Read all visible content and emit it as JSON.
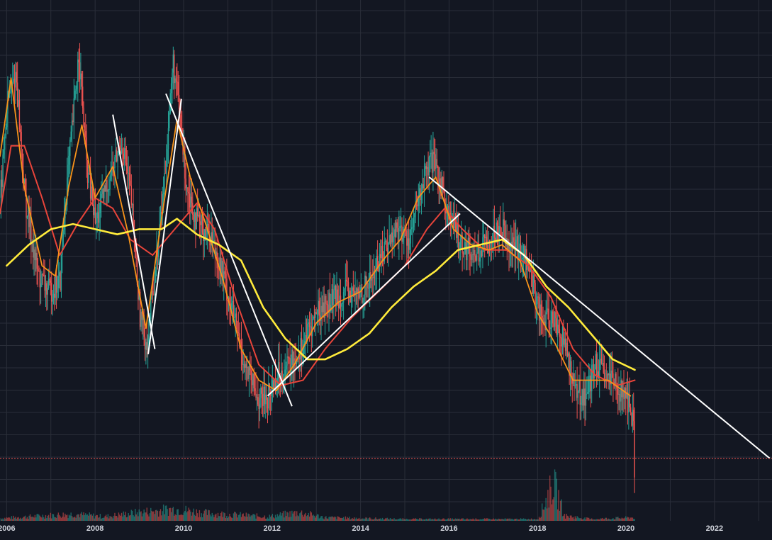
{
  "chart_data": {
    "type": "candlestick",
    "xlim": [
      2005.85,
      2023.3
    ],
    "ylim": [
      0,
      1
    ],
    "y_axis_labels": "none",
    "grid": true,
    "colors": {
      "background": "#131722",
      "grid": "#2a2e39",
      "up": "#26a69a",
      "down": "#ef5350",
      "sma_fast": "#f7931a",
      "sma_mid": "#e8443a",
      "sma_slow": "#ffeb3b",
      "trendlines": "#ffffff",
      "price_line": "#ef5350",
      "volume_up": "#26a69a",
      "volume_down": "#ef5350"
    },
    "x_ticks": [
      "2006",
      "2008",
      "2010",
      "2012",
      "2014",
      "2016",
      "2018",
      "2020",
      "2022"
    ],
    "x_tick_values": [
      2006,
      2008,
      2010,
      2012,
      2014,
      2016,
      2018,
      2020,
      2022
    ],
    "price_path": [
      [
        2005.85,
        0.62
      ],
      [
        2006.0,
        0.8
      ],
      [
        2006.2,
        0.86
      ],
      [
        2006.4,
        0.62
      ],
      [
        2006.7,
        0.47
      ],
      [
        2006.95,
        0.44
      ],
      [
        2007.2,
        0.46
      ],
      [
        2007.3,
        0.6
      ],
      [
        2007.5,
        0.78
      ],
      [
        2007.62,
        0.9
      ],
      [
        2007.8,
        0.68
      ],
      [
        2008.0,
        0.57
      ],
      [
        2008.2,
        0.63
      ],
      [
        2008.4,
        0.68
      ],
      [
        2008.6,
        0.73
      ],
      [
        2008.8,
        0.62
      ],
      [
        2009.0,
        0.4
      ],
      [
        2009.15,
        0.34
      ],
      [
        2009.35,
        0.48
      ],
      [
        2009.55,
        0.65
      ],
      [
        2009.75,
        0.88
      ],
      [
        2009.9,
        0.78
      ],
      [
        2010.05,
        0.65
      ],
      [
        2010.3,
        0.57
      ],
      [
        2010.6,
        0.55
      ],
      [
        2010.85,
        0.48
      ],
      [
        2011.1,
        0.4
      ],
      [
        2011.4,
        0.29
      ],
      [
        2011.7,
        0.23
      ],
      [
        2011.9,
        0.24
      ],
      [
        2012.1,
        0.28
      ],
      [
        2012.4,
        0.3
      ],
      [
        2012.7,
        0.34
      ],
      [
        2013.0,
        0.4
      ],
      [
        2013.3,
        0.42
      ],
      [
        2013.6,
        0.44
      ],
      [
        2013.9,
        0.43
      ],
      [
        2014.2,
        0.46
      ],
      [
        2014.5,
        0.52
      ],
      [
        2014.8,
        0.56
      ],
      [
        2015.1,
        0.54
      ],
      [
        2015.4,
        0.65
      ],
      [
        2015.6,
        0.69
      ],
      [
        2015.8,
        0.65
      ],
      [
        2016.0,
        0.58
      ],
      [
        2016.3,
        0.53
      ],
      [
        2016.6,
        0.51
      ],
      [
        2016.9,
        0.54
      ],
      [
        2017.15,
        0.57
      ],
      [
        2017.4,
        0.53
      ],
      [
        2017.7,
        0.51
      ],
      [
        2017.9,
        0.45
      ],
      [
        2018.1,
        0.38
      ],
      [
        2018.35,
        0.39
      ],
      [
        2018.6,
        0.34
      ],
      [
        2018.85,
        0.25
      ],
      [
        2019.1,
        0.24
      ],
      [
        2019.3,
        0.3
      ],
      [
        2019.55,
        0.27
      ],
      [
        2019.8,
        0.26
      ],
      [
        2020.0,
        0.23
      ],
      [
        2020.15,
        0.2
      ],
      [
        2020.2,
        0.05
      ]
    ],
    "volume_path": [
      [
        2005.85,
        0.03
      ],
      [
        2006.8,
        0.06
      ],
      [
        2007.5,
        0.08
      ],
      [
        2008.2,
        0.05
      ],
      [
        2009.0,
        0.1
      ],
      [
        2009.8,
        0.14
      ],
      [
        2010.5,
        0.09
      ],
      [
        2011.2,
        0.07
      ],
      [
        2011.9,
        0.05
      ],
      [
        2012.6,
        0.1
      ],
      [
        2013.2,
        0.04
      ],
      [
        2014.0,
        0.03
      ],
      [
        2015.0,
        0.02
      ],
      [
        2016.0,
        0.02
      ],
      [
        2017.0,
        0.02
      ],
      [
        2018.0,
        0.02
      ],
      [
        2018.35,
        0.45
      ],
      [
        2018.6,
        0.06
      ],
      [
        2019.2,
        0.02
      ],
      [
        2020.2,
        0.04
      ]
    ],
    "sma_fast": [
      [
        2005.85,
        0.7
      ],
      [
        2006.1,
        0.85
      ],
      [
        2006.4,
        0.64
      ],
      [
        2006.8,
        0.49
      ],
      [
        2007.1,
        0.47
      ],
      [
        2007.4,
        0.64
      ],
      [
        2007.7,
        0.76
      ],
      [
        2008.0,
        0.62
      ],
      [
        2008.4,
        0.68
      ],
      [
        2008.75,
        0.55
      ],
      [
        2009.15,
        0.37
      ],
      [
        2009.5,
        0.58
      ],
      [
        2009.85,
        0.77
      ],
      [
        2010.15,
        0.66
      ],
      [
        2010.5,
        0.57
      ],
      [
        2010.9,
        0.46
      ],
      [
        2011.3,
        0.33
      ],
      [
        2011.7,
        0.27
      ],
      [
        2012.1,
        0.25
      ],
      [
        2012.5,
        0.3
      ],
      [
        2013.0,
        0.38
      ],
      [
        2013.5,
        0.42
      ],
      [
        2014.0,
        0.44
      ],
      [
        2014.5,
        0.5
      ],
      [
        2014.9,
        0.54
      ],
      [
        2015.3,
        0.62
      ],
      [
        2015.7,
        0.66
      ],
      [
        2016.1,
        0.56
      ],
      [
        2016.5,
        0.53
      ],
      [
        2016.9,
        0.52
      ],
      [
        2017.2,
        0.53
      ],
      [
        2017.6,
        0.5
      ],
      [
        2018.0,
        0.4
      ],
      [
        2018.4,
        0.34
      ],
      [
        2018.8,
        0.27
      ],
      [
        2019.2,
        0.27
      ],
      [
        2019.6,
        0.27
      ],
      [
        2020.1,
        0.24
      ]
    ],
    "sma_mid": [
      [
        2005.85,
        0.59
      ],
      [
        2006.1,
        0.72
      ],
      [
        2006.4,
        0.72
      ],
      [
        2006.8,
        0.62
      ],
      [
        2007.2,
        0.51
      ],
      [
        2007.6,
        0.57
      ],
      [
        2008.0,
        0.62
      ],
      [
        2008.4,
        0.6
      ],
      [
        2008.8,
        0.54
      ],
      [
        2009.3,
        0.51
      ],
      [
        2009.8,
        0.56
      ],
      [
        2010.3,
        0.61
      ],
      [
        2010.7,
        0.56
      ],
      [
        2011.2,
        0.42
      ],
      [
        2011.7,
        0.3
      ],
      [
        2012.2,
        0.26
      ],
      [
        2012.7,
        0.27
      ],
      [
        2013.2,
        0.33
      ],
      [
        2013.8,
        0.39
      ],
      [
        2014.4,
        0.44
      ],
      [
        2015.0,
        0.49
      ],
      [
        2015.5,
        0.56
      ],
      [
        2015.9,
        0.6
      ],
      [
        2016.3,
        0.56
      ],
      [
        2016.8,
        0.52
      ],
      [
        2017.3,
        0.52
      ],
      [
        2017.8,
        0.49
      ],
      [
        2018.3,
        0.43
      ],
      [
        2018.8,
        0.33
      ],
      [
        2019.3,
        0.28
      ],
      [
        2019.8,
        0.26
      ],
      [
        2020.2,
        0.27
      ]
    ],
    "sma_slow": [
      [
        2006.0,
        0.49
      ],
      [
        2006.5,
        0.53
      ],
      [
        2007.0,
        0.56
      ],
      [
        2007.5,
        0.57
      ],
      [
        2008.0,
        0.56
      ],
      [
        2008.5,
        0.55
      ],
      [
        2009.0,
        0.56
      ],
      [
        2009.5,
        0.56
      ],
      [
        2009.85,
        0.58
      ],
      [
        2010.3,
        0.55
      ],
      [
        2010.8,
        0.53
      ],
      [
        2011.3,
        0.5
      ],
      [
        2011.8,
        0.41
      ],
      [
        2012.3,
        0.35
      ],
      [
        2012.8,
        0.31
      ],
      [
        2013.2,
        0.31
      ],
      [
        2013.7,
        0.33
      ],
      [
        2014.2,
        0.36
      ],
      [
        2014.7,
        0.41
      ],
      [
        2015.2,
        0.45
      ],
      [
        2015.7,
        0.48
      ],
      [
        2016.2,
        0.52
      ],
      [
        2016.7,
        0.53
      ],
      [
        2017.2,
        0.54
      ],
      [
        2017.7,
        0.51
      ],
      [
        2018.2,
        0.45
      ],
      [
        2018.7,
        0.41
      ],
      [
        2019.2,
        0.36
      ],
      [
        2019.7,
        0.31
      ],
      [
        2020.2,
        0.29
      ]
    ],
    "trendlines": [
      {
        "from": [
          2008.4,
          0.78
        ],
        "to": [
          2009.35,
          0.33
        ]
      },
      {
        "from": [
          2009.6,
          0.82
        ],
        "to": [
          2012.45,
          0.22
        ]
      },
      {
        "from": [
          2009.2,
          0.32
        ],
        "to": [
          2009.95,
          0.81
        ]
      },
      {
        "from": [
          2011.9,
          0.24
        ],
        "to": [
          2016.25,
          0.59
        ]
      },
      {
        "from": [
          2015.55,
          0.66
        ],
        "to": [
          2023.25,
          0.12
        ]
      }
    ],
    "price_line_level": 0.12
  }
}
